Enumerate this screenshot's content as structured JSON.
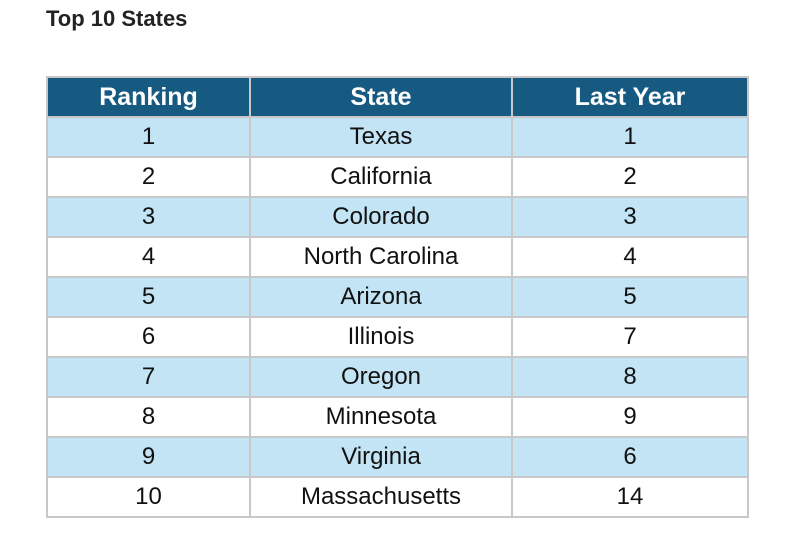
{
  "title": "Top 10 States",
  "table": {
    "headers": [
      "Ranking",
      "State",
      "Last Year"
    ],
    "rows": [
      [
        "1",
        "Texas",
        "1"
      ],
      [
        "2",
        "California",
        "2"
      ],
      [
        "3",
        "Colorado",
        "3"
      ],
      [
        "4",
        "North Carolina",
        "4"
      ],
      [
        "5",
        "Arizona",
        "5"
      ],
      [
        "6",
        "Illinois",
        "7"
      ],
      [
        "7",
        "Oregon",
        "8"
      ],
      [
        "8",
        "Minnesota",
        "9"
      ],
      [
        "9",
        "Virginia",
        "6"
      ],
      [
        "10",
        "Massachusetts",
        "14"
      ]
    ]
  },
  "colors": {
    "header_bg": "#165a82",
    "header_text": "#ffffff",
    "stripe_bg": "#c3e4f4",
    "border": "#c8c8c8"
  }
}
